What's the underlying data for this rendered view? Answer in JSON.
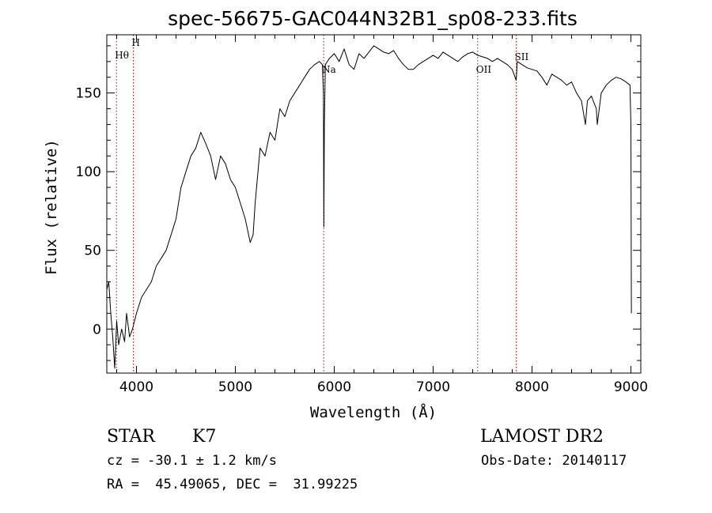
{
  "chart_data": {
    "type": "line",
    "title": "spec-56675-GAC044N32B1_sp08-233.fits",
    "xlabel": "Wavelength (Å)",
    "ylabel": "Flux (relative)",
    "xlim": [
      3700,
      9100
    ],
    "ylim": [
      -28,
      187
    ],
    "xticks": [
      4000,
      5000,
      6000,
      7000,
      8000,
      9000
    ],
    "yticks": [
      0,
      50,
      100,
      150
    ],
    "grid": false,
    "line_color": "#000000",
    "marker_color": "#cc0000",
    "spectral_lines": [
      {
        "label": "Hθ",
        "x": 3798,
        "y_label": 172
      },
      {
        "label": "H",
        "x": 3968,
        "y_label": 180
      },
      {
        "label": "Na",
        "x": 5893,
        "y_label": 163
      },
      {
        "label": "OII",
        "x": 7450,
        "y_label": 163
      },
      {
        "label": "SII",
        "x": 7840,
        "y_label": 171
      }
    ],
    "series": [
      {
        "x": [
          3700,
          3720,
          3740,
          3760,
          3780,
          3800,
          3820,
          3850,
          3880,
          3900,
          3930,
          3960,
          4000,
          4050,
          4100,
          4150,
          4200,
          4250,
          4300,
          4350,
          4400,
          4450,
          4500,
          4550,
          4600,
          4650,
          4700,
          4750,
          4800,
          4850,
          4900,
          4950,
          5000,
          5050,
          5100,
          5150,
          5180,
          5200,
          5250,
          5300,
          5350,
          5400,
          5450,
          5500,
          5550,
          5600,
          5650,
          5700,
          5750,
          5800,
          5850,
          5880,
          5890,
          5895,
          5900,
          5910,
          5950,
          6000,
          6050,
          6100,
          6150,
          6200,
          6250,
          6300,
          6350,
          6400,
          6450,
          6500,
          6550,
          6600,
          6650,
          6700,
          6750,
          6800,
          6850,
          6900,
          6950,
          7000,
          7050,
          7100,
          7150,
          7200,
          7250,
          7300,
          7350,
          7400,
          7450,
          7500,
          7550,
          7600,
          7650,
          7700,
          7750,
          7800,
          7840,
          7850,
          7900,
          7950,
          8000,
          8050,
          8100,
          8150,
          8200,
          8250,
          8300,
          8350,
          8400,
          8450,
          8500,
          8540,
          8560,
          8600,
          8650,
          8660,
          8700,
          8750,
          8800,
          8850,
          8900,
          8950,
          8990,
          9000,
          9005
        ],
        "y": [
          25,
          30,
          10,
          -5,
          -25,
          5,
          -10,
          0,
          -8,
          10,
          -5,
          0,
          10,
          20,
          25,
          30,
          40,
          45,
          50,
          60,
          70,
          90,
          100,
          110,
          115,
          125,
          118,
          110,
          95,
          110,
          105,
          95,
          90,
          80,
          70,
          55,
          60,
          80,
          115,
          110,
          125,
          120,
          140,
          135,
          145,
          150,
          155,
          160,
          165,
          168,
          170,
          168,
          150,
          65,
          130,
          168,
          172,
          175,
          170,
          178,
          168,
          165,
          175,
          172,
          176,
          180,
          178,
          176,
          175,
          177,
          172,
          168,
          165,
          165,
          168,
          170,
          172,
          174,
          172,
          176,
          174,
          172,
          170,
          173,
          175,
          176,
          174,
          173,
          172,
          170,
          172,
          170,
          168,
          165,
          158,
          170,
          168,
          166,
          165,
          164,
          160,
          155,
          162,
          160,
          158,
          155,
          157,
          150,
          145,
          130,
          145,
          148,
          140,
          130,
          150,
          155,
          158,
          160,
          159,
          157,
          155,
          130,
          10
        ]
      }
    ]
  },
  "info": {
    "object_type": "STAR",
    "subclass": "K7",
    "survey": "LAMOST DR2",
    "cz": "cz = -30.1 ± 1.2 km/s",
    "obs_date": "Obs-Date: 20140117",
    "coords": "RA =  45.49065, DEC =  31.99225"
  }
}
